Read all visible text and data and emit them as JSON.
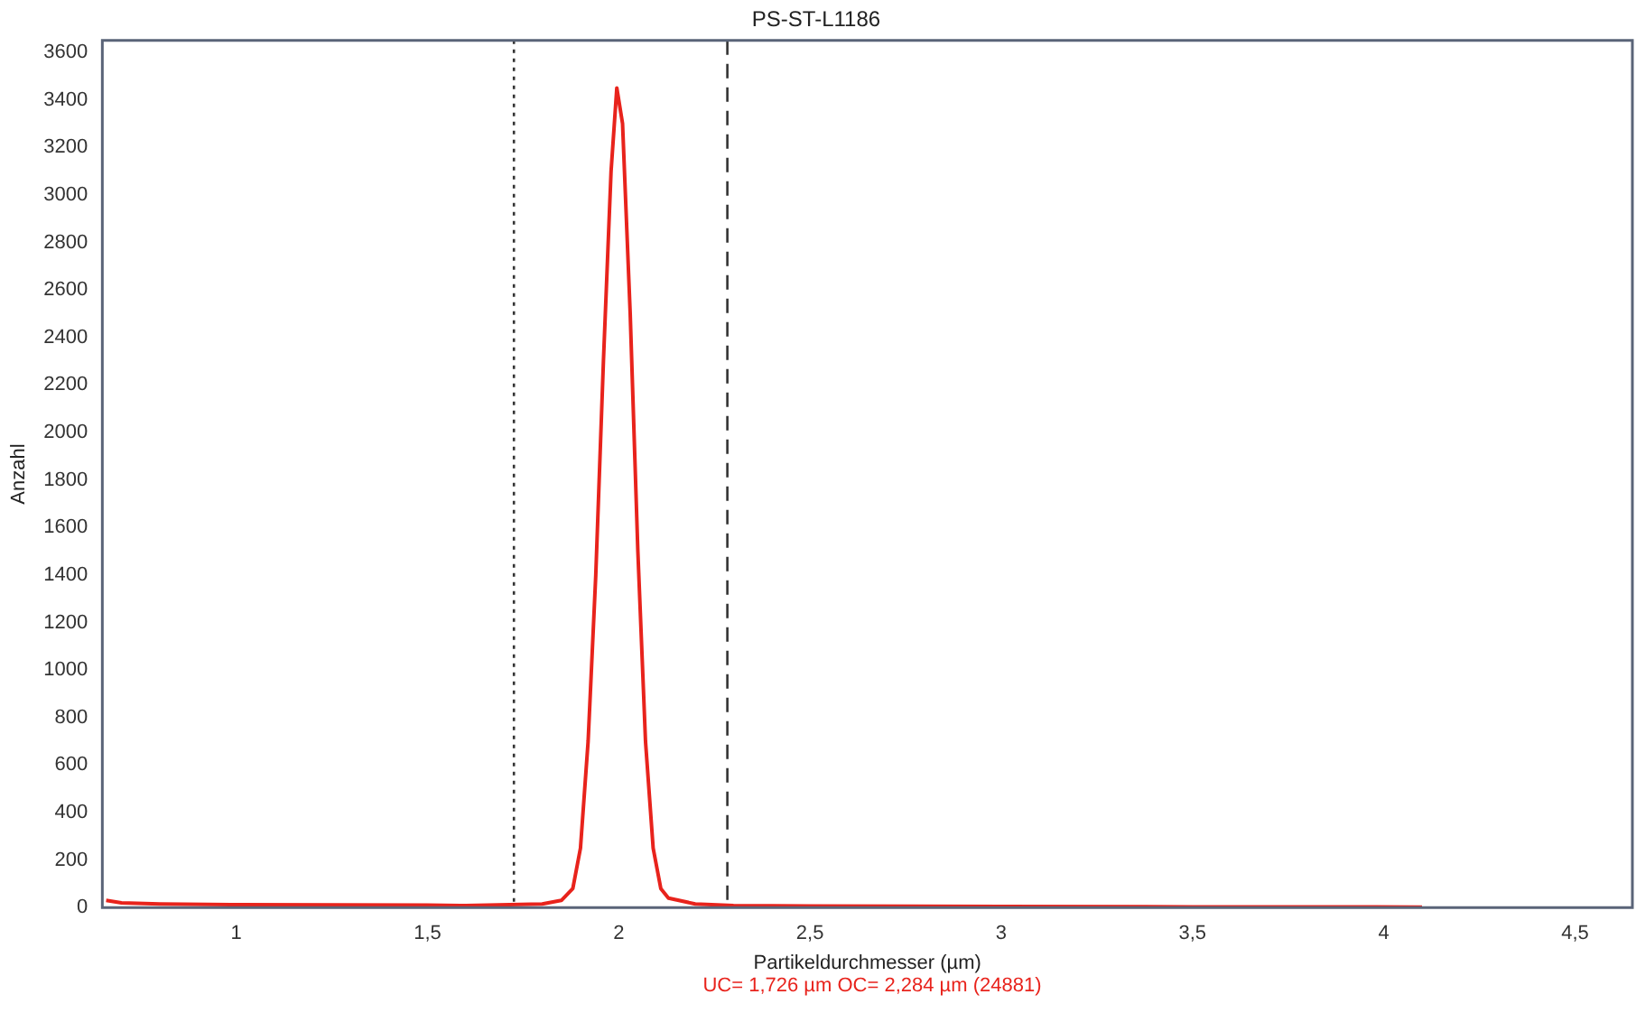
{
  "chart_data": {
    "type": "line",
    "title": "PS-ST-L1186",
    "xlabel": "Partikeldurchmesser (µm)",
    "ylabel": "Anzahl",
    "x": [
      0.66,
      0.7,
      0.8,
      1.0,
      1.5,
      1.6,
      1.8,
      1.85,
      1.88,
      1.9,
      1.92,
      1.94,
      1.96,
      1.98,
      1.995,
      2.01,
      2.03,
      2.05,
      2.07,
      2.09,
      2.11,
      2.13,
      2.2,
      2.3,
      2.5,
      3.0,
      3.5,
      4.1
    ],
    "series": [
      {
        "color": "#e8231c",
        "values": [
          30,
          20,
          15,
          12,
          10,
          8,
          15,
          30,
          80,
          250,
          700,
          1400,
          2300,
          3100,
          3450,
          3300,
          2500,
          1500,
          700,
          250,
          80,
          40,
          15,
          8,
          6,
          5,
          3,
          2
        ]
      }
    ],
    "xlim": [
      0.65,
      4.65
    ],
    "ylim": [
      0,
      3650
    ],
    "xticks": [
      1,
      {
        "value": 1.5,
        "label": "1,5"
      },
      2,
      {
        "value": 2.5,
        "label": "2,5"
      },
      3,
      {
        "value": 3.5,
        "label": "3,5"
      },
      4,
      {
        "value": 4.5,
        "label": "4,5"
      }
    ],
    "yticks": [
      0,
      200,
      400,
      600,
      800,
      1000,
      1200,
      1400,
      1600,
      1800,
      2000,
      2200,
      2400,
      2600,
      2800,
      3000,
      3200,
      3400,
      3600
    ],
    "ref_lines": [
      {
        "axis": "x",
        "value": 1.726,
        "label": null,
        "color": "#333333",
        "line_style": "dotted"
      },
      {
        "axis": "x",
        "value": 2.284,
        "label": null,
        "color": "#333333",
        "line_style": "dashed"
      }
    ],
    "annotations": [
      "UC= 1,726 µm   OC= 2,284 µm (24881)"
    ],
    "grid": false,
    "legend": false,
    "marker": "none",
    "line_style": "solid"
  }
}
